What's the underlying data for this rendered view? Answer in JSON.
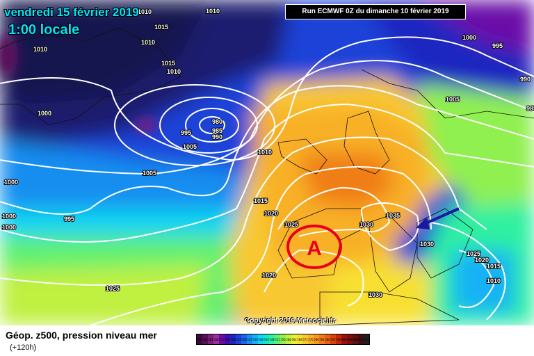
{
  "header": {
    "date": "vendredi 15 février 2019",
    "time": "1:00 locale",
    "run_info": "Run ECMWF 0Z du dimanche 10 février 2019"
  },
  "map": {
    "anticyclone_letter": "A",
    "copyright": "Copyright 2019 Meteociel.fr",
    "isobar_labels": [
      "1010",
      "1010",
      "1015",
      "1010",
      "1010",
      "1015",
      "1010",
      "1000",
      "995",
      "990",
      "985",
      "1005",
      "1000",
      "995",
      "980",
      "985",
      "990",
      "1005",
      "1010",
      "1005",
      "1000",
      "995",
      "1000",
      "1000",
      "1015",
      "1020",
      "1025",
      "1030",
      "1035",
      "1030",
      "1025",
      "1020",
      "1015",
      "1010",
      "1025",
      "1020",
      "1030"
    ],
    "colors": {
      "outline_color": "#ffffff",
      "arrow_color": "#1a1aa0",
      "circle_color": "#e8001c"
    }
  },
  "legend": {
    "title": "Géop. z500, pression niveau mer",
    "subtitle": "(+120h)",
    "scale_values": [
      "496",
      "500",
      "504",
      "508",
      "512",
      "516",
      "520",
      "524",
      "528",
      "532",
      "536",
      "540",
      "544",
      "548",
      "552",
      "556",
      "560",
      "564",
      "568",
      "572",
      "576",
      "580",
      "584",
      "588",
      "592",
      "596",
      "600",
      "604",
      "608",
      "612",
      "616"
    ],
    "scale_colors": [
      "#3c0a3c",
      "#5a0f5a",
      "#7a1f7a",
      "#9b2e9b",
      "#6a0da8",
      "#3d0fb0",
      "#1f25c0",
      "#1f43d8",
      "#1c66e8",
      "#188ef0",
      "#12b2f5",
      "#10d4f0",
      "#10e8c8",
      "#2ef0a0",
      "#60f070",
      "#90f050",
      "#c0f040",
      "#e8f030",
      "#f8e030",
      "#f8c830",
      "#f8b028",
      "#f89820",
      "#f07e18",
      "#e86010",
      "#d84408",
      "#c02808",
      "#a01010",
      "#801010",
      "#601010",
      "#401010",
      "#202020"
    ]
  }
}
